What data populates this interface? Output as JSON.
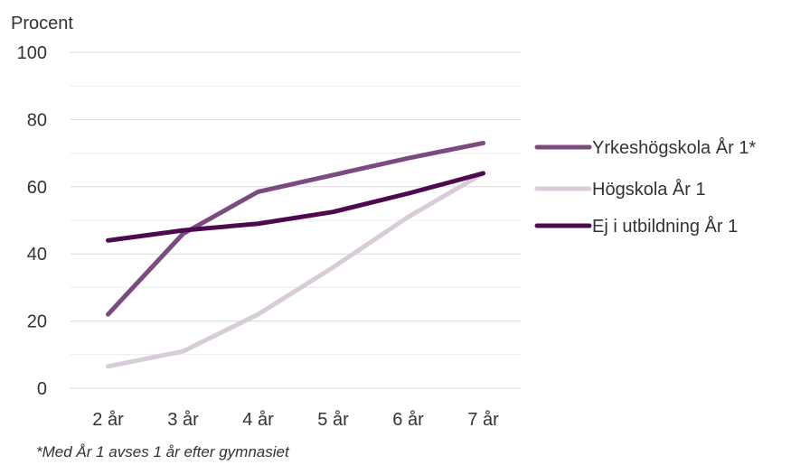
{
  "chart_data": {
    "type": "line",
    "ylabel": "Procent",
    "categories": [
      "2 år",
      "3 år",
      "4 år",
      "5 år",
      "6 år",
      "7 år"
    ],
    "ylim": [
      0,
      100
    ],
    "yticks": [
      0,
      20,
      40,
      60,
      80,
      100
    ],
    "grid": true,
    "legend_position": "right",
    "series": [
      {
        "name": "Yrkeshögskola År 1*",
        "color": "#7b4a7f",
        "values": [
          22,
          46,
          58.5,
          63.5,
          68.5,
          73
        ]
      },
      {
        "name": "Högskola År 1",
        "color": "#d9ccd9",
        "values": [
          6.5,
          11,
          22,
          36,
          51,
          64
        ]
      },
      {
        "name": "Ej i utbildning År 1",
        "color": "#4e0a4f",
        "values": [
          44,
          47,
          49,
          52.5,
          58,
          64
        ]
      }
    ],
    "footnote": "*Med År 1 avses 1 år efter gymnasiet"
  }
}
